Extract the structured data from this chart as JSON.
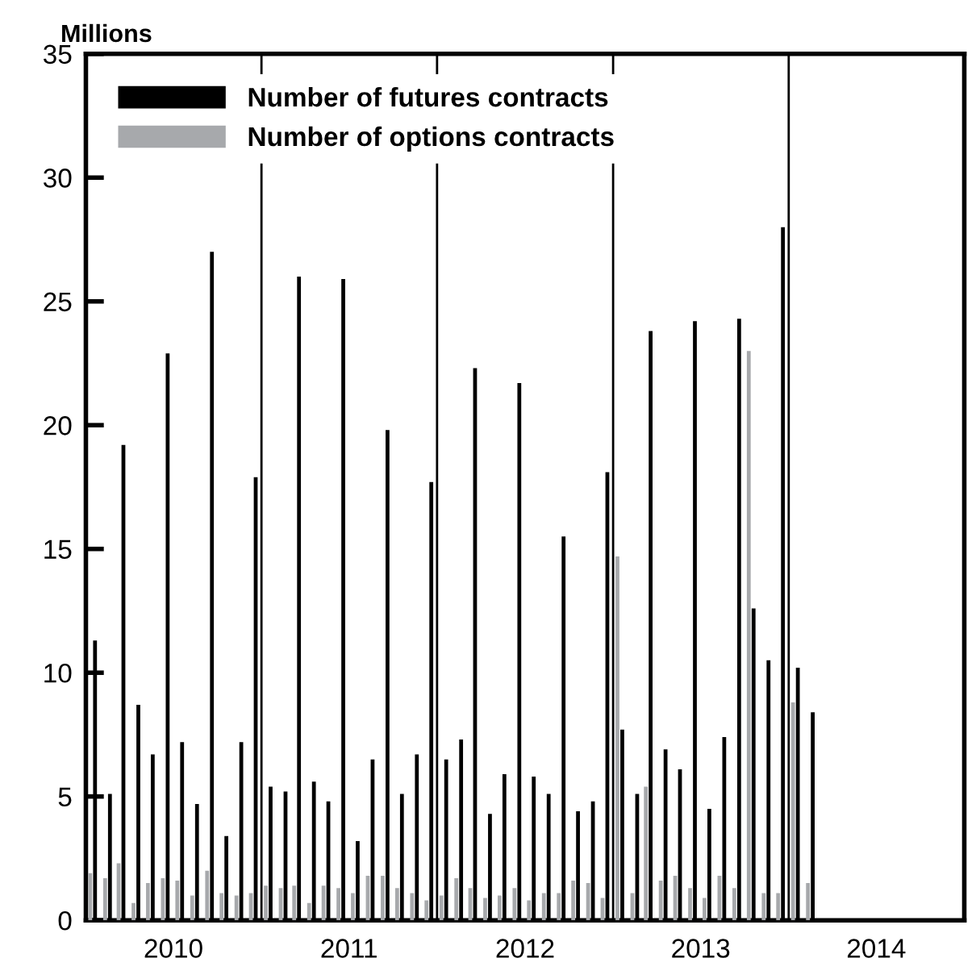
{
  "chart_data": {
    "type": "bar",
    "ylabel": "Millions",
    "x": [
      "2010-01-15",
      "2010-02-15",
      "2010-03-15",
      "2010-04-15",
      "2010-05-15",
      "2010-06-15",
      "2010-07-15",
      "2010-08-15",
      "2010-09-15",
      "2010-10-15",
      "2010-11-15",
      "2010-12-15",
      "2011-01-15",
      "2011-02-15",
      "2011-03-15",
      "2011-04-15",
      "2011-05-15",
      "2011-06-15",
      "2011-07-15",
      "2011-08-15",
      "2011-09-15",
      "2011-10-15",
      "2011-11-15",
      "2011-12-15",
      "2012-01-15",
      "2012-02-15",
      "2012-03-15",
      "2012-04-15",
      "2012-05-15",
      "2012-06-15",
      "2012-07-15",
      "2012-08-15",
      "2012-09-15",
      "2012-10-15",
      "2012-11-15",
      "2012-12-15",
      "2013-01-15",
      "2013-02-15",
      "2013-03-15",
      "2013-04-15",
      "2013-05-15",
      "2013-06-15",
      "2013-07-15",
      "2013-08-15",
      "2013-09-15",
      "2013-10-15",
      "2013-11-15",
      "2013-12-15",
      "2014-01-15",
      "2014-02-15"
    ],
    "series": [
      {
        "name": "Number of futures contracts",
        "color": "#000000",
        "values": [
          11.3,
          5.1,
          19.2,
          8.7,
          6.7,
          22.9,
          7.2,
          4.7,
          27.0,
          3.4,
          7.2,
          17.9,
          5.4,
          5.2,
          26.0,
          5.6,
          4.8,
          25.9,
          3.2,
          6.5,
          19.8,
          5.1,
          6.7,
          17.7,
          6.5,
          7.3,
          22.3,
          4.3,
          5.9,
          21.7,
          5.8,
          5.1,
          15.5,
          4.4,
          4.8,
          18.1,
          7.7,
          5.1,
          23.8,
          6.9,
          6.1,
          24.2,
          4.5,
          7.4,
          24.3,
          12.6,
          10.5,
          28.0,
          10.2,
          8.4
        ]
      },
      {
        "name": "Number of options contracts",
        "color": "#a7a9ac",
        "values": [
          1.9,
          1.7,
          2.3,
          0.7,
          1.5,
          1.7,
          1.6,
          1.0,
          2.0,
          1.1,
          1.0,
          1.1,
          1.4,
          1.3,
          1.4,
          0.7,
          1.4,
          1.3,
          1.1,
          1.8,
          1.8,
          1.3,
          1.1,
          0.8,
          1.0,
          1.7,
          1.3,
          0.9,
          1.0,
          1.3,
          0.8,
          1.1,
          1.1,
          1.6,
          1.5,
          0.9,
          14.7,
          1.1,
          5.4,
          1.6,
          1.8,
          1.3,
          0.9,
          1.8,
          1.3,
          23.0,
          1.1,
          1.1,
          8.8,
          1.5
        ]
      }
    ],
    "xlim": [
      "2010-01-01",
      "2015-01-01"
    ],
    "xticks": [
      {
        "value": "2010-07-02",
        "label": "2010"
      },
      {
        "value": "2011-07-02",
        "label": "2011"
      },
      {
        "value": "2012-07-02",
        "label": "2012"
      },
      {
        "value": "2013-07-02",
        "label": "2013"
      },
      {
        "value": "2014-07-02",
        "label": "2014"
      }
    ],
    "ylim": [
      0,
      35
    ],
    "yticks": [
      0,
      5,
      10,
      15,
      20,
      25,
      30,
      35
    ],
    "ref_lines": [
      {
        "axis": "x",
        "value": "2011-01-01",
        "color": "#000000"
      },
      {
        "axis": "x",
        "value": "2012-01-01",
        "color": "#000000"
      },
      {
        "axis": "x",
        "value": "2013-01-01",
        "color": "#000000"
      },
      {
        "axis": "x",
        "value": "2014-01-01",
        "color": "#000000"
      }
    ],
    "grid": false,
    "legend": "top left"
  }
}
